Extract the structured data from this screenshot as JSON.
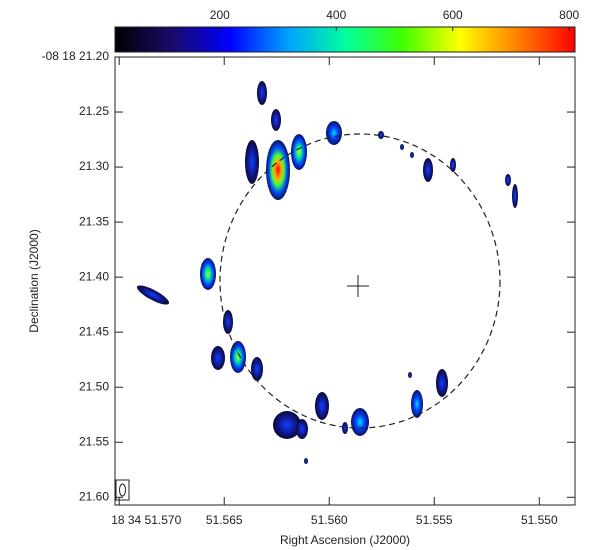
{
  "chart_data": {
    "type": "image",
    "xlabel": "Right Ascension (J2000)",
    "ylabel": "Declination (J2000)",
    "xlim": [
      51.5702,
      51.5483
    ],
    "xticks": [
      {
        "value": 51.57,
        "label": "18 34 51.570"
      },
      {
        "value": 51.565,
        "label": "51.565"
      },
      {
        "value": 51.56,
        "label": "51.560"
      },
      {
        "value": 51.555,
        "label": "51.555"
      },
      {
        "value": 51.55,
        "label": "51.550"
      }
    ],
    "ylim": [
      21.607,
      21.2
    ],
    "yticks": [
      {
        "value": 21.2,
        "label": "-08 18 21.20"
      },
      21.25,
      {
        "value": 21.3,
        "label": "21.30"
      },
      21.35,
      {
        "value": 21.4,
        "label": "21.40"
      },
      21.45,
      {
        "value": 21.5,
        "label": "21.50"
      },
      21.55,
      {
        "value": 21.6,
        "label": "21.60"
      }
    ],
    "colorbar": {
      "clim": [
        20,
        810
      ],
      "ticks": [
        200,
        400,
        600,
        800
      ],
      "colors": [
        "#000000",
        "#1a0a6b",
        "#0000ff",
        "#00a0ff",
        "#00ffa0",
        "#40ff00",
        "#ffff00",
        "#ff8000",
        "#ff0000"
      ]
    }
  }
}
